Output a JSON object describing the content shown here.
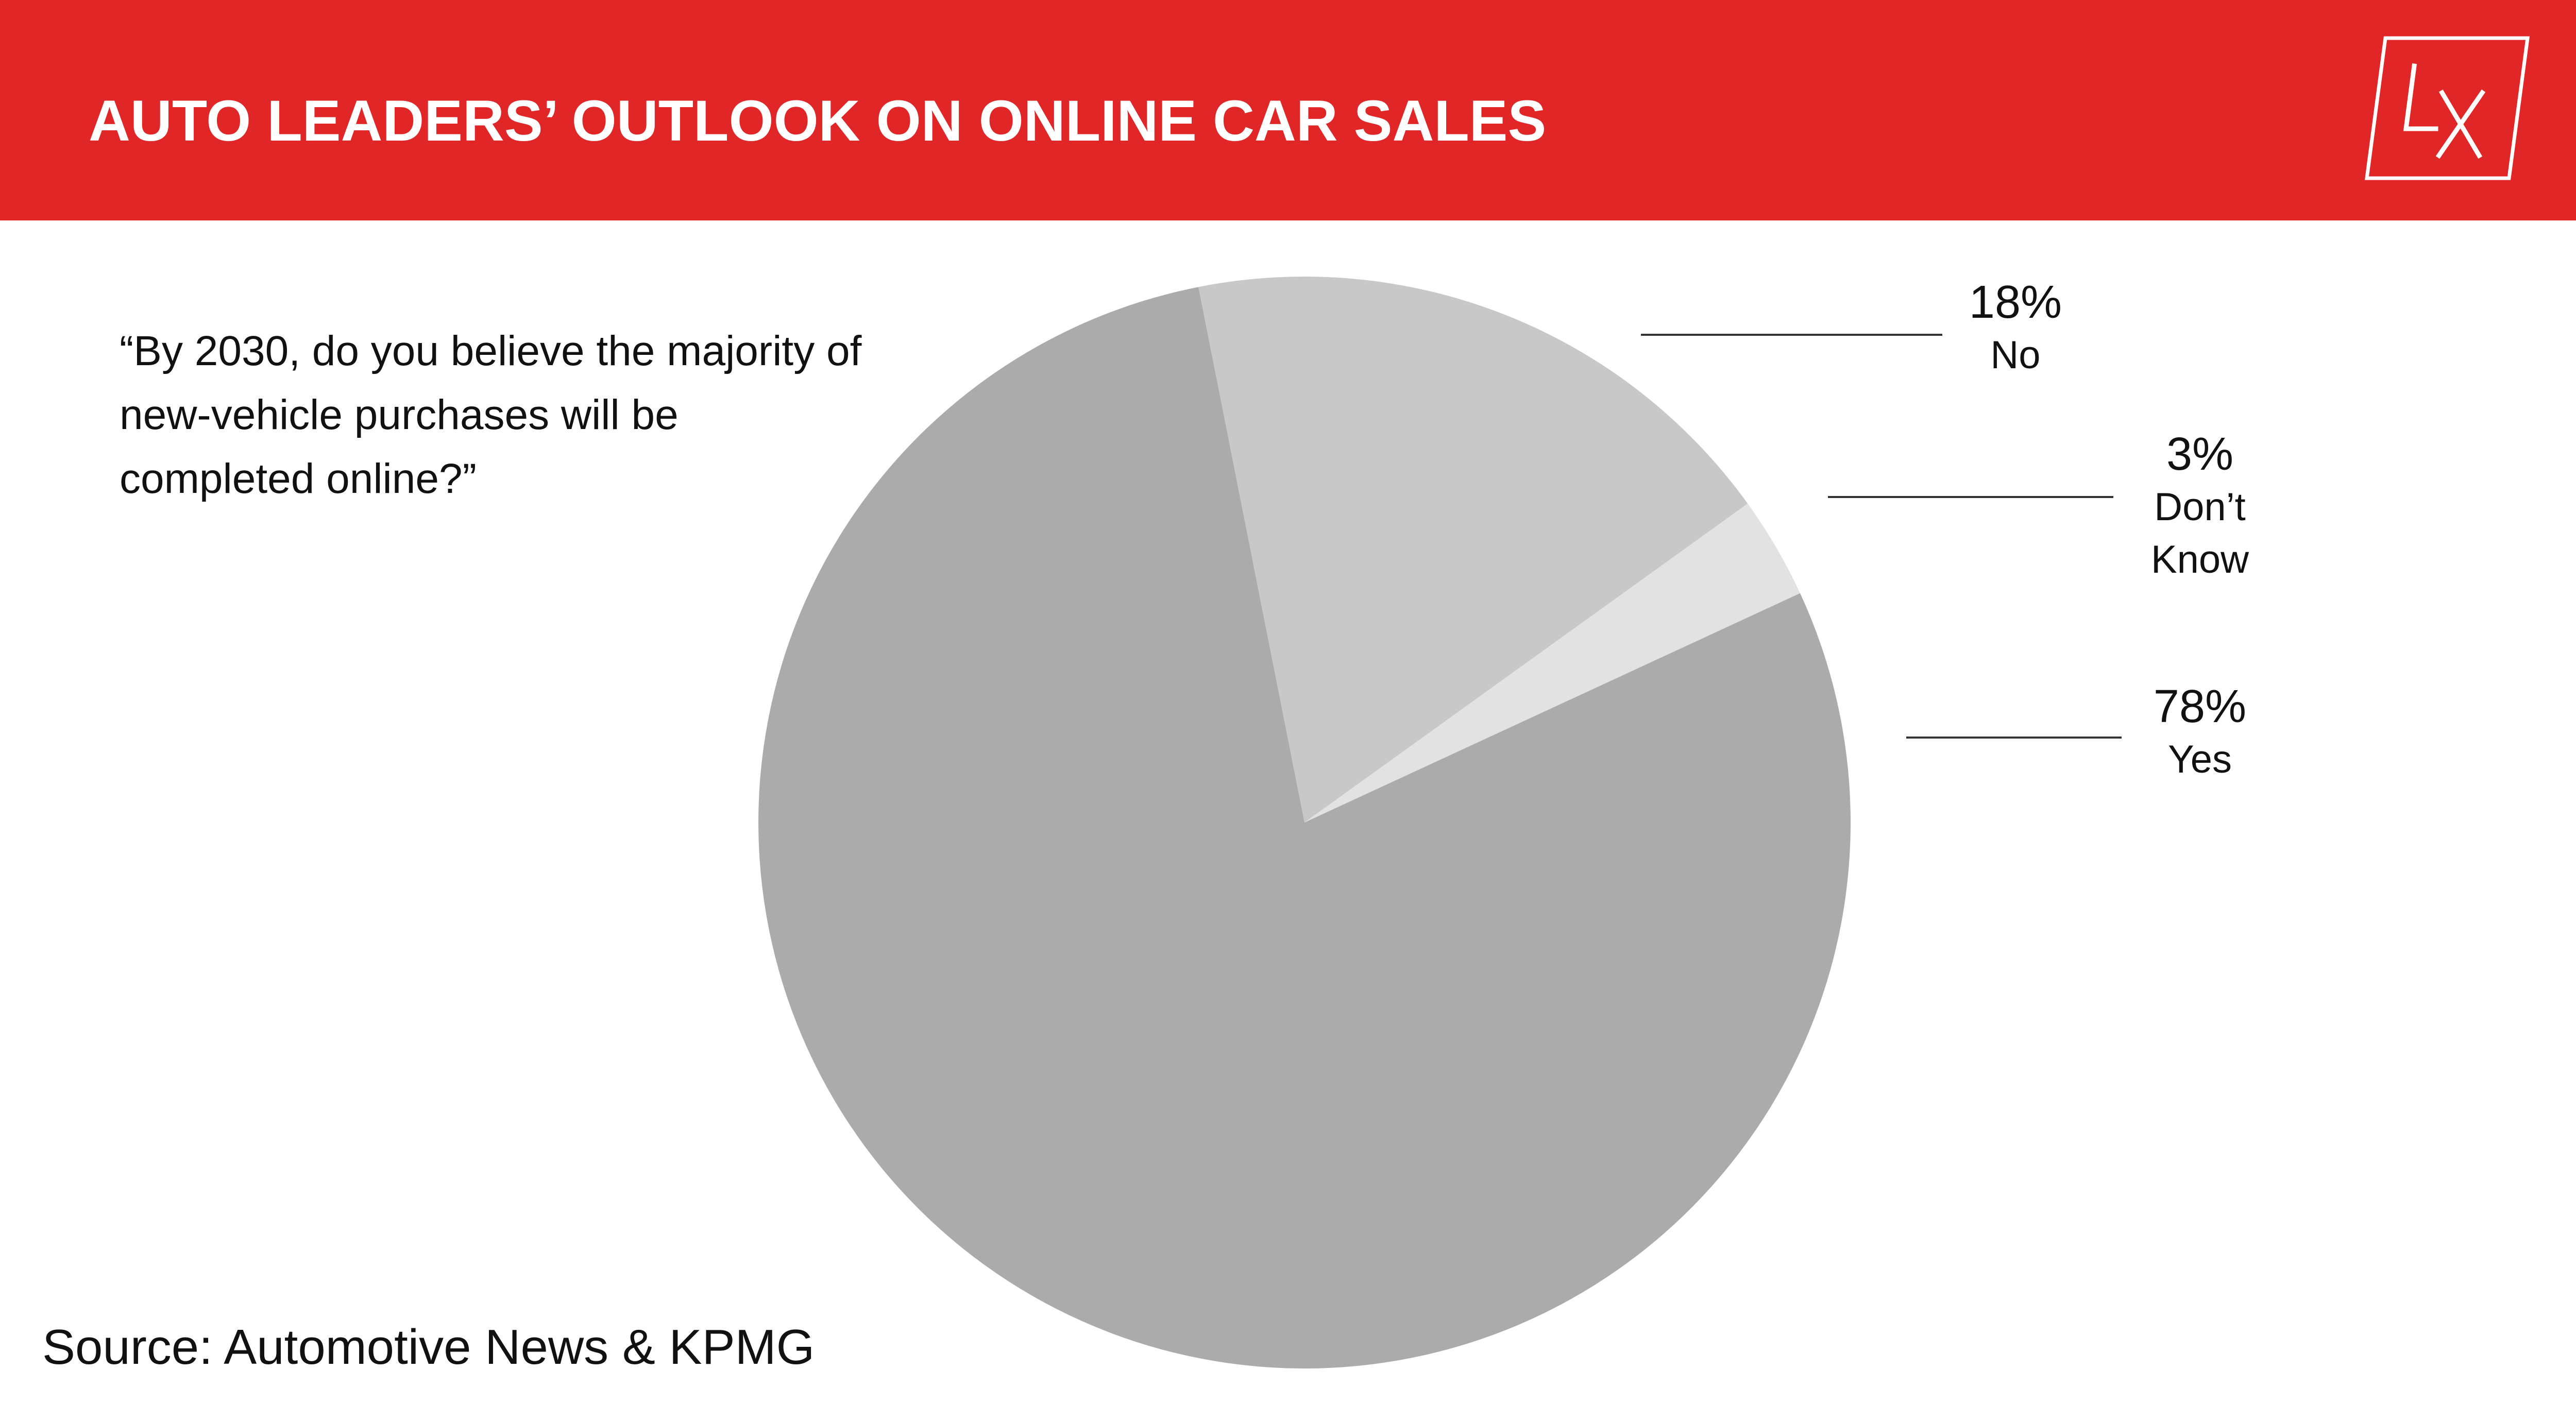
{
  "header": {
    "title": "AUTO LEADERS’ OUTLOOK ON ONLINE CAR SALES",
    "logo_text": "LX",
    "background_color": "#e12628"
  },
  "question": "“By 2030, do you believe the majority of new-vehicle purchases will be completed online?”",
  "source": "Source: Automotive News & KPMG",
  "chart_data": {
    "type": "pie",
    "slices": [
      {
        "label": "No",
        "value_text": "18%",
        "value": 18,
        "color": "#c8c8c8"
      },
      {
        "label": "Don’t Know",
        "value_text": "3%",
        "value": 3,
        "color": "#e2e2e2"
      },
      {
        "label": "Yes",
        "value_text": "78%",
        "value": 78,
        "color": "#ababab"
      }
    ],
    "legend": "right"
  }
}
